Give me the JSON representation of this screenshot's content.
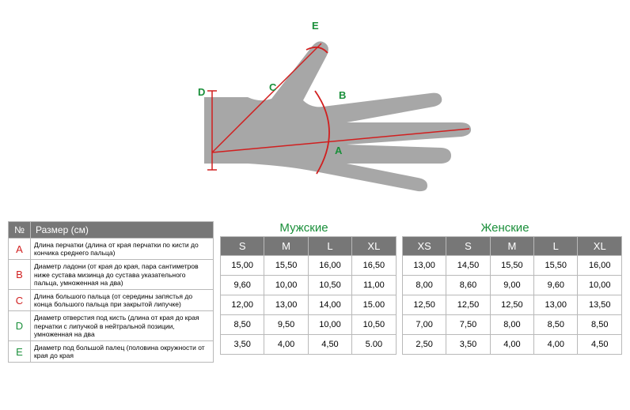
{
  "diagram": {
    "hand_fill": "#a7a7a7",
    "line_color": "#d11f1f",
    "label_color": "#1a8f3a",
    "label_fontsize": 13,
    "labels": [
      "A",
      "B",
      "C",
      "D",
      "E"
    ]
  },
  "left_table": {
    "header_bg": "#777777",
    "header_color": "#ffffff",
    "border_color": "#b9b9b9",
    "no_header": "№",
    "size_header": "Размер (см)",
    "rows": [
      {
        "letter": "A",
        "letter_color": "#d11f1f",
        "desc": "Длина перчатки (длина от края перчатки по кисти до кончика среднего пальца)"
      },
      {
        "letter": "B",
        "letter_color": "#d11f1f",
        "desc": "Диаметр ладони (от края до края, пара сантиметров ниже сустава мизинца до сустава указательного пальца, умноженная на два)"
      },
      {
        "letter": "C",
        "letter_color": "#d11f1f",
        "desc": "Длина большого пальца (от середины запястья до конца большого пальца при закрытой липучке)"
      },
      {
        "letter": "D",
        "letter_color": "#1a8f3a",
        "desc": "Диаметр отверстия под кисть (длина от края до края перчатки с липучкой в нейтральной позиции, умноженная на два"
      },
      {
        "letter": "E",
        "letter_color": "#1a8f3a",
        "desc": "Диаметр под большой палец (половина окружности от края до края"
      }
    ]
  },
  "right_table": {
    "men_label": "Мужские",
    "women_label": "Женские",
    "label_color": "#1a8f3a",
    "header_bg": "#777777",
    "header_color": "#ffffff",
    "border_color": "#b9b9b9",
    "men_cols": [
      "S",
      "M",
      "L",
      "XL"
    ],
    "women_cols": [
      "XS",
      "S",
      "M",
      "L",
      "XL"
    ],
    "rows": [
      {
        "men": [
          "15,00",
          "15,50",
          "16,00",
          "16,50"
        ],
        "women": [
          "13,00",
          "14,50",
          "15,50",
          "15,50",
          "16,00"
        ]
      },
      {
        "men": [
          "9,60",
          "10,00",
          "10,50",
          "11,00"
        ],
        "women": [
          "8,00",
          "8,60",
          "9,00",
          "9,60",
          "10,00"
        ]
      },
      {
        "men": [
          "12,00",
          "13,00",
          "14,00",
          "15.00"
        ],
        "women": [
          "12,50",
          "12,50",
          "12,50",
          "13,00",
          "13,50"
        ]
      },
      {
        "men": [
          "8,50",
          "9,50",
          "10,00",
          "10,50"
        ],
        "women": [
          "7,00",
          "7,50",
          "8,00",
          "8,50",
          "8,50"
        ]
      },
      {
        "men": [
          "3,50",
          "4,00",
          "4,50",
          "5.00"
        ],
        "women": [
          "2,50",
          "3,50",
          "4,00",
          "4,00",
          "4,50"
        ]
      }
    ]
  }
}
